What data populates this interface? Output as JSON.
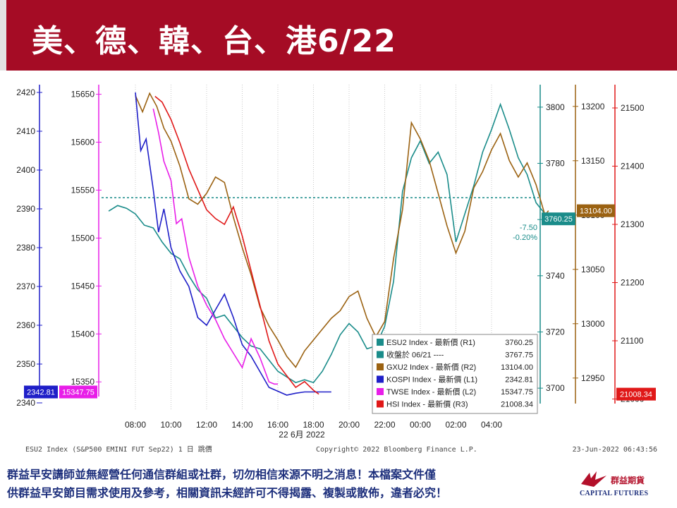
{
  "title": "美、德、韓、台、港6/22",
  "footer": {
    "disclaimer": "群益早安講師並無經營任何通信群組或社群，切勿相信來源不明之消息！本檔案文件僅\n供群益早安節目需求使用及參考，相關資訊未經許可不得揭露、複製或散佈，違者必究！",
    "logo_cn": "群益期貨",
    "logo_en": "CAPITAL FUTURES"
  },
  "chart_data": {
    "type": "line",
    "x_ticks": [
      "08:00",
      "10:00",
      "12:00",
      "14:00",
      "16:00",
      "18:00",
      "20:00",
      "22:00",
      "00:00",
      "02:00",
      "04:00"
    ],
    "x_date_label": "22 6月 2022",
    "source_left": "ESU2 Index (S&P500 EMINI FUT  Sep22) 1 日  跳價",
    "copyright": "Copyright© 2022 Bloomberg Finance L.P.",
    "timestamp": "23-Jun-2022 06:43:56",
    "axes": {
      "L1": {
        "ticks": [
          2420,
          2410,
          2400,
          2390,
          2380,
          2370,
          2360,
          2350,
          2340
        ],
        "range": [
          2338,
          2422
        ],
        "color": "#1f1fc8"
      },
      "L2": {
        "ticks": [
          15650,
          15600,
          15550,
          15500,
          15450,
          15400,
          15350
        ],
        "range": [
          15320,
          15660
        ],
        "color": "#e81ee8"
      },
      "R1": {
        "ticks": [
          3800,
          3780,
          3760,
          3740,
          3720,
          3700
        ],
        "range": [
          3692,
          3808
        ],
        "color": "#1a8c8a"
      },
      "R2": {
        "ticks": [
          13200,
          13150,
          13100,
          13050,
          13000,
          12950
        ],
        "range": [
          12920,
          13220
        ],
        "color": "#9b6212"
      },
      "R3": {
        "ticks": [
          21500,
          21400,
          21300,
          21200,
          21100,
          21000
        ],
        "range": [
          20980,
          21540
        ],
        "color": "#e01818"
      }
    },
    "series": [
      {
        "name": "ESU2 Index - 最新價 (R1)",
        "value": "3760.25",
        "color": "#1a8c8a",
        "axis": "R1",
        "points": [
          [
            -1.5,
            3763
          ],
          [
            -1,
            3765
          ],
          [
            -0.5,
            3764
          ],
          [
            0,
            3762
          ],
          [
            0.5,
            3758
          ],
          [
            1,
            3757
          ],
          [
            1.5,
            3752
          ],
          [
            2,
            3748
          ],
          [
            2.5,
            3746
          ],
          [
            3,
            3740
          ],
          [
            3.5,
            3735
          ],
          [
            4,
            3732
          ],
          [
            4.5,
            3725
          ],
          [
            5,
            3726
          ],
          [
            5.5,
            3722
          ],
          [
            6,
            3718
          ],
          [
            6.5,
            3715
          ],
          [
            7,
            3714
          ],
          [
            7.5,
            3710
          ],
          [
            8,
            3706
          ],
          [
            8.5,
            3704
          ],
          [
            9,
            3702
          ],
          [
            9.5,
            3703
          ],
          [
            10,
            3702
          ],
          [
            10.5,
            3706
          ],
          [
            11,
            3712
          ],
          [
            11.5,
            3719
          ],
          [
            12,
            3723
          ],
          [
            12.5,
            3720
          ],
          [
            13,
            3714
          ],
          [
            13.5,
            3715
          ],
          [
            14,
            3722
          ],
          [
            14.5,
            3738
          ],
          [
            15,
            3770
          ],
          [
            15.5,
            3782
          ],
          [
            16,
            3788
          ],
          [
            16.5,
            3780
          ],
          [
            17,
            3784
          ],
          [
            17.5,
            3776
          ],
          [
            18,
            3752
          ],
          [
            18.5,
            3762
          ],
          [
            19,
            3772
          ],
          [
            19.5,
            3784
          ],
          [
            20,
            3792
          ],
          [
            20.5,
            3801
          ],
          [
            21,
            3792
          ],
          [
            21.5,
            3782
          ],
          [
            22,
            3776
          ],
          [
            22.5,
            3766
          ],
          [
            23,
            3762
          ],
          [
            23.5,
            3760
          ],
          [
            24,
            3760.25
          ],
          [
            24.6,
            3760.25
          ]
        ]
      },
      {
        "name": "收盤於 06/21 ----",
        "value": "3767.75",
        "color": "#1a8c8a",
        "axis": "R1",
        "dashed": true
      },
      {
        "name": "GXU2 Index - 最新價 (R2)",
        "value": "13104.00",
        "color": "#9b6212",
        "axis": "R2",
        "points": [
          [
            0,
            13210
          ],
          [
            0.4,
            13195
          ],
          [
            0.8,
            13212
          ],
          [
            1.2,
            13200
          ],
          [
            1.6,
            13180
          ],
          [
            2,
            13168
          ],
          [
            2.5,
            13145
          ],
          [
            3,
            13115
          ],
          [
            3.5,
            13110
          ],
          [
            4,
            13120
          ],
          [
            4.5,
            13135
          ],
          [
            5,
            13130
          ],
          [
            5.5,
            13098
          ],
          [
            6,
            13070
          ],
          [
            6.5,
            13045
          ],
          [
            7,
            13015
          ],
          [
            7.5,
            12998
          ],
          [
            8,
            12985
          ],
          [
            8.5,
            12970
          ],
          [
            9,
            12960
          ],
          [
            9.5,
            12975
          ],
          [
            10,
            12985
          ],
          [
            10.5,
            12995
          ],
          [
            11,
            13005
          ],
          [
            11.5,
            13012
          ],
          [
            12,
            13025
          ],
          [
            12.5,
            13030
          ],
          [
            13,
            13005
          ],
          [
            13.5,
            12988
          ],
          [
            14,
            13002
          ],
          [
            14.5,
            13060
          ],
          [
            15,
            13105
          ],
          [
            15.5,
            13185
          ],
          [
            16,
            13170
          ],
          [
            16.5,
            13150
          ],
          [
            17,
            13120
          ],
          [
            17.5,
            13090
          ],
          [
            18,
            13065
          ],
          [
            18.5,
            13085
          ],
          [
            19,
            13125
          ],
          [
            19.5,
            13140
          ],
          [
            20,
            13160
          ],
          [
            20.5,
            13175
          ],
          [
            21,
            13150
          ],
          [
            21.5,
            13135
          ],
          [
            22,
            13148
          ],
          [
            22.5,
            13128
          ],
          [
            23,
            13100
          ],
          [
            23.2,
            13104
          ]
        ]
      },
      {
        "name": "KOSPI Index - 最新價 (L1)",
        "value": "2342.81",
        "color": "#1f1fc8",
        "axis": "L1",
        "points": [
          [
            0,
            2420
          ],
          [
            0.3,
            2405
          ],
          [
            0.6,
            2408
          ],
          [
            1,
            2395
          ],
          [
            1.3,
            2384
          ],
          [
            1.6,
            2390
          ],
          [
            2,
            2380
          ],
          [
            2.5,
            2374
          ],
          [
            3,
            2370
          ],
          [
            3.5,
            2362
          ],
          [
            4,
            2360
          ],
          [
            4.5,
            2364
          ],
          [
            5,
            2368
          ],
          [
            5.5,
            2362
          ],
          [
            6,
            2355
          ],
          [
            6.5,
            2352
          ],
          [
            7,
            2348
          ],
          [
            7.5,
            2344
          ],
          [
            8,
            2343
          ],
          [
            8.5,
            2342
          ],
          [
            9,
            2342.5
          ],
          [
            9.5,
            2342.81
          ],
          [
            11,
            2342.81
          ]
        ]
      },
      {
        "name": "TWSE Index - 最新價 (L2)",
        "value": "15347.75",
        "color": "#e81ee8",
        "axis": "L2",
        "points": [
          [
            1,
            15635
          ],
          [
            1.3,
            15610
          ],
          [
            1.6,
            15580
          ],
          [
            2,
            15560
          ],
          [
            2.3,
            15515
          ],
          [
            2.6,
            15520
          ],
          [
            3,
            15480
          ],
          [
            3.5,
            15450
          ],
          [
            4,
            15430
          ],
          [
            4.5,
            15415
          ],
          [
            5,
            15395
          ],
          [
            5.5,
            15380
          ],
          [
            6,
            15365
          ],
          [
            6.5,
            15395
          ],
          [
            7,
            15375
          ],
          [
            7.5,
            15350
          ],
          [
            7.8,
            15347.75
          ],
          [
            8,
            15347.75
          ]
        ]
      },
      {
        "name": "HSI Index - 最新價 (R3)",
        "value": "21008.34",
        "color": "#e01818",
        "axis": "R3",
        "points": [
          [
            1.1,
            21520
          ],
          [
            1.5,
            21510
          ],
          [
            2,
            21480
          ],
          [
            2.5,
            21440
          ],
          [
            3,
            21395
          ],
          [
            3.5,
            21360
          ],
          [
            4,
            21325
          ],
          [
            4.5,
            21310
          ],
          [
            5,
            21300
          ],
          [
            5.5,
            21330
          ],
          [
            6,
            21280
          ],
          [
            6.5,
            21220
          ],
          [
            7,
            21160
          ],
          [
            7.5,
            21100
          ],
          [
            8,
            21060
          ],
          [
            8.5,
            21040
          ],
          [
            9,
            21020
          ],
          [
            9.5,
            21030
          ],
          [
            10,
            21015
          ],
          [
            10.3,
            21008.34
          ]
        ]
      }
    ],
    "marker_labels": {
      "kospi": "2342.81",
      "twse": "15347.75",
      "esu2": "3760.25",
      "gxu2": "13104.00",
      "hsi": "21008.34",
      "change_abs": "-7.50",
      "change_pct": "-0.20%"
    },
    "legend_position": "bottom-right"
  }
}
